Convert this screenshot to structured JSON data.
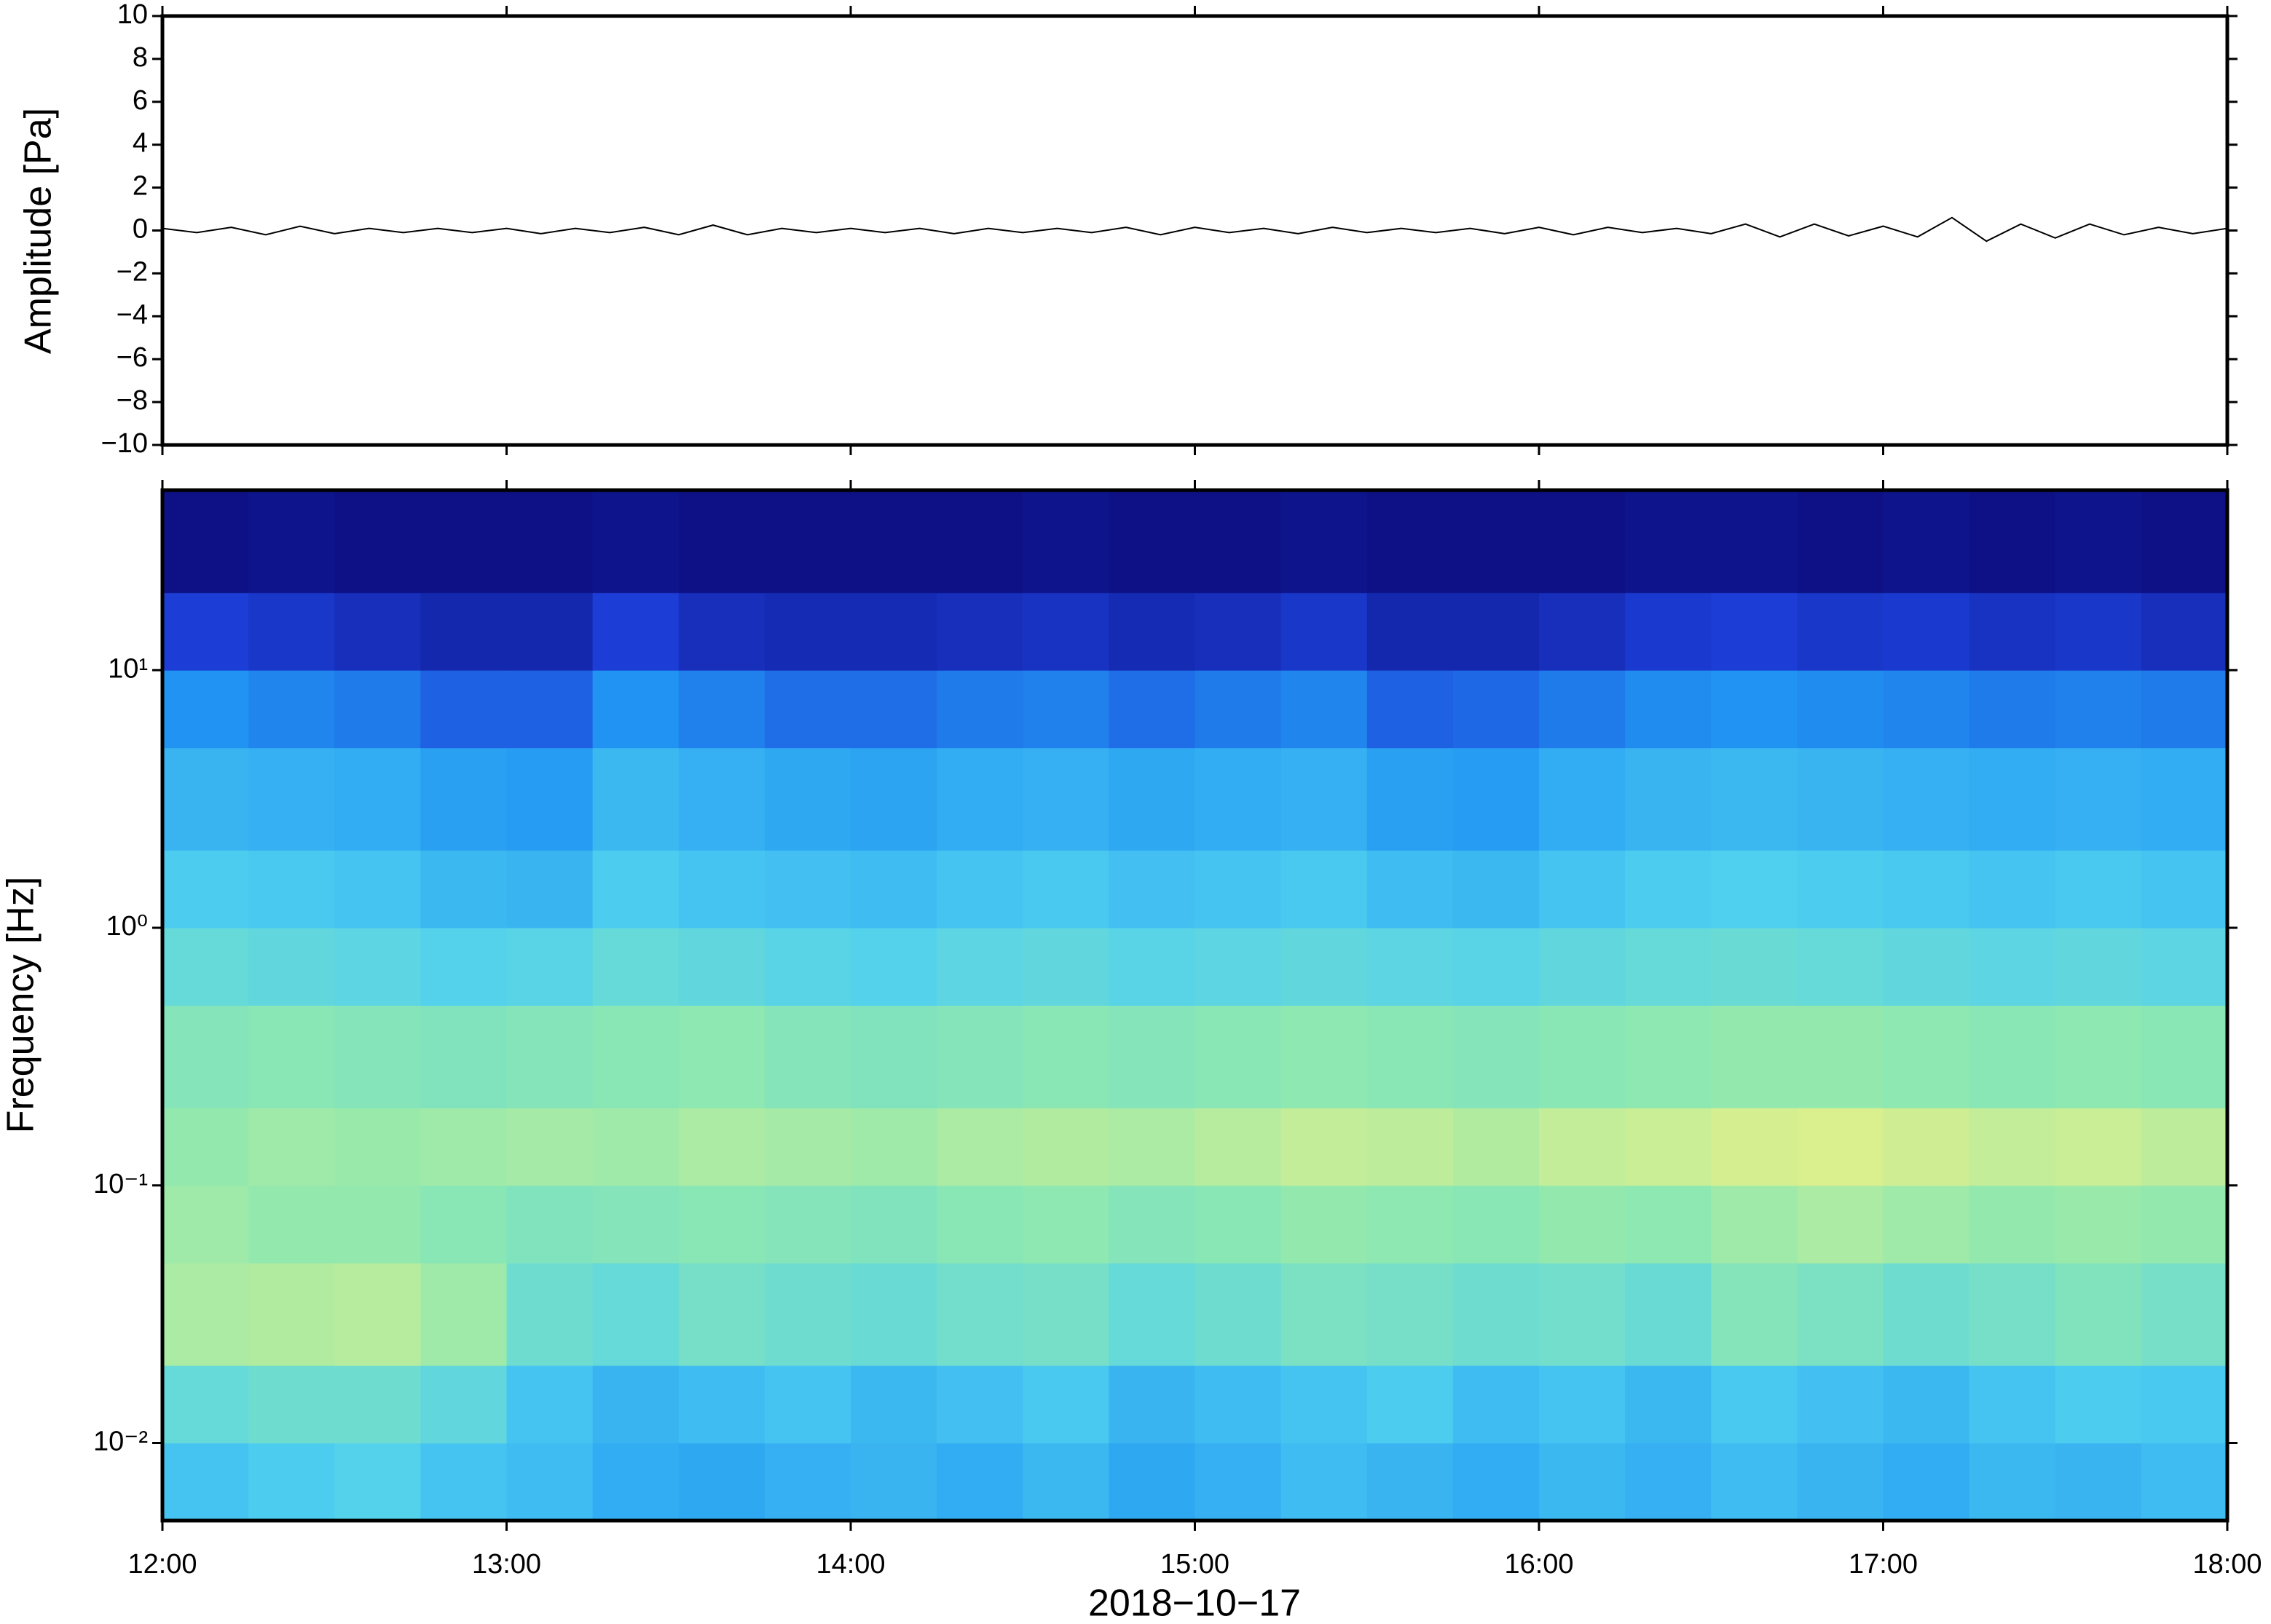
{
  "chart_data": [
    {
      "type": "line",
      "ylabel": "Amplitude [Pa]",
      "color": "#000000",
      "xlim": [
        12,
        18
      ],
      "ylim": [
        -10,
        10
      ],
      "yticks": [
        {
          "value": -10,
          "label": "−10"
        },
        {
          "value": -8,
          "label": "−8"
        },
        {
          "value": -6,
          "label": "−6"
        },
        {
          "value": -4,
          "label": "−4"
        },
        {
          "value": -2,
          "label": "−2"
        },
        0,
        2,
        4,
        6,
        8,
        10
      ],
      "x": [
        12.0,
        12.1,
        12.2,
        12.3,
        12.4,
        12.5,
        12.6,
        12.7,
        12.8,
        12.9,
        13.0,
        13.1,
        13.2,
        13.3,
        13.4,
        13.5,
        13.6,
        13.7,
        13.8,
        13.9,
        14.0,
        14.1,
        14.2,
        14.3,
        14.4,
        14.5,
        14.6,
        14.7,
        14.8,
        14.9,
        15.0,
        15.1,
        15.2,
        15.3,
        15.4,
        15.5,
        15.6,
        15.7,
        15.8,
        15.9,
        16.0,
        16.1,
        16.2,
        16.3,
        16.4,
        16.5,
        16.6,
        16.7,
        16.8,
        16.9,
        17.0,
        17.1,
        17.2,
        17.3,
        17.4,
        17.5,
        17.6,
        17.7,
        17.8,
        17.9,
        18.0
      ],
      "values": [
        0.1,
        -0.1,
        0.15,
        -0.2,
        0.2,
        -0.15,
        0.1,
        -0.1,
        0.1,
        -0.1,
        0.1,
        -0.15,
        0.1,
        -0.1,
        0.15,
        -0.2,
        0.25,
        -0.2,
        0.1,
        -0.1,
        0.1,
        -0.1,
        0.1,
        -0.15,
        0.1,
        -0.1,
        0.1,
        -0.1,
        0.15,
        -0.2,
        0.15,
        -0.1,
        0.1,
        -0.15,
        0.15,
        -0.1,
        0.1,
        -0.1,
        0.1,
        -0.15,
        0.15,
        -0.2,
        0.15,
        -0.1,
        0.1,
        -0.15,
        0.3,
        -0.3,
        0.3,
        -0.25,
        0.2,
        -0.3,
        0.6,
        -0.5,
        0.3,
        -0.35,
        0.3,
        -0.2,
        0.15,
        -0.15,
        0.1
      ]
    },
    {
      "type": "heatmap",
      "ylabel": "Frequency [Hz]",
      "xlabel": "2018−10−17",
      "log_y": true,
      "xlim": [
        12,
        18
      ],
      "ylim": [
        0.005,
        50
      ],
      "xticks": [
        {
          "value": 12,
          "label": "12:00"
        },
        {
          "value": 13,
          "label": "13:00"
        },
        {
          "value": 14,
          "label": "14:00"
        },
        {
          "value": 15,
          "label": "15:00"
        },
        {
          "value": 16,
          "label": "16:00"
        },
        {
          "value": 17,
          "label": "17:00"
        },
        {
          "value": 18,
          "label": "18:00"
        }
      ],
      "yticks": [
        {
          "value": 0.01,
          "label": "10⁻²"
        },
        {
          "value": 0.1,
          "label": "10⁻¹"
        },
        {
          "value": 1,
          "label": "10⁰"
        },
        {
          "value": 10,
          "label": "10¹"
        }
      ],
      "colormap": [
        "#0a0a78",
        "#1c3fd8",
        "#2196f3",
        "#4fd0f0",
        "#8ee8b0",
        "#e3f08a",
        "#f8c060",
        "#e04020"
      ],
      "zlim": [
        0,
        1
      ],
      "x_edges": [
        12,
        12.25,
        12.5,
        12.75,
        13,
        13.25,
        13.5,
        13.75,
        14,
        14.25,
        14.5,
        14.75,
        15,
        15.25,
        15.5,
        15.75,
        16,
        16.25,
        16.5,
        16.75,
        17,
        17.25,
        17.5,
        17.75,
        18
      ],
      "y_edges": [
        0.005,
        0.01,
        0.02,
        0.05,
        0.1,
        0.2,
        0.5,
        1,
        2,
        5,
        10,
        20,
        50
      ],
      "z": [
        [
          0.4,
          0.42,
          0.44,
          0.4,
          0.38,
          0.34,
          0.33,
          0.35,
          0.36,
          0.34,
          0.37,
          0.33,
          0.35,
          0.38,
          0.36,
          0.34,
          0.37,
          0.35,
          0.38,
          0.36,
          0.34,
          0.37,
          0.36,
          0.38
        ],
        [
          0.48,
          0.5,
          0.5,
          0.47,
          0.4,
          0.36,
          0.38,
          0.4,
          0.37,
          0.39,
          0.41,
          0.36,
          0.38,
          0.4,
          0.42,
          0.38,
          0.4,
          0.37,
          0.41,
          0.39,
          0.37,
          0.4,
          0.42,
          0.41
        ],
        [
          0.62,
          0.63,
          0.64,
          0.6,
          0.5,
          0.48,
          0.52,
          0.5,
          0.49,
          0.51,
          0.52,
          0.48,
          0.5,
          0.53,
          0.52,
          0.5,
          0.51,
          0.49,
          0.55,
          0.53,
          0.5,
          0.52,
          0.54,
          0.52
        ],
        [
          0.6,
          0.58,
          0.58,
          0.56,
          0.54,
          0.55,
          0.56,
          0.55,
          0.54,
          0.56,
          0.57,
          0.55,
          0.56,
          0.58,
          0.57,
          0.56,
          0.58,
          0.57,
          0.6,
          0.62,
          0.6,
          0.58,
          0.59,
          0.58
        ],
        [
          0.58,
          0.6,
          0.59,
          0.6,
          0.61,
          0.6,
          0.62,
          0.61,
          0.6,
          0.62,
          0.63,
          0.62,
          0.64,
          0.66,
          0.65,
          0.63,
          0.66,
          0.67,
          0.69,
          0.7,
          0.68,
          0.66,
          0.67,
          0.65
        ],
        [
          0.55,
          0.56,
          0.55,
          0.54,
          0.55,
          0.56,
          0.57,
          0.55,
          0.54,
          0.55,
          0.56,
          0.55,
          0.56,
          0.57,
          0.56,
          0.55,
          0.56,
          0.57,
          0.58,
          0.58,
          0.57,
          0.56,
          0.57,
          0.56
        ],
        [
          0.48,
          0.47,
          0.46,
          0.44,
          0.45,
          0.48,
          0.47,
          0.45,
          0.44,
          0.46,
          0.47,
          0.45,
          0.46,
          0.47,
          0.46,
          0.45,
          0.47,
          0.48,
          0.49,
          0.48,
          0.47,
          0.46,
          0.47,
          0.46
        ],
        [
          0.42,
          0.41,
          0.4,
          0.37,
          0.36,
          0.42,
          0.4,
          0.39,
          0.38,
          0.4,
          0.41,
          0.39,
          0.4,
          0.41,
          0.38,
          0.37,
          0.4,
          0.42,
          0.43,
          0.42,
          0.41,
          0.4,
          0.41,
          0.4
        ],
        [
          0.36,
          0.35,
          0.34,
          0.31,
          0.3,
          0.37,
          0.35,
          0.33,
          0.32,
          0.34,
          0.35,
          0.33,
          0.34,
          0.35,
          0.31,
          0.3,
          0.34,
          0.36,
          0.37,
          0.36,
          0.35,
          0.34,
          0.35,
          0.34
        ],
        [
          0.28,
          0.26,
          0.24,
          0.2,
          0.2,
          0.28,
          0.25,
          0.22,
          0.22,
          0.24,
          0.25,
          0.22,
          0.24,
          0.26,
          0.2,
          0.21,
          0.24,
          0.27,
          0.28,
          0.27,
          0.26,
          0.24,
          0.25,
          0.24
        ],
        [
          0.14,
          0.12,
          0.1,
          0.08,
          0.08,
          0.14,
          0.1,
          0.09,
          0.09,
          0.1,
          0.11,
          0.09,
          0.1,
          0.12,
          0.08,
          0.08,
          0.1,
          0.13,
          0.14,
          0.12,
          0.13,
          0.11,
          0.12,
          0.1
        ],
        [
          0.02,
          0.03,
          0.02,
          0.02,
          0.02,
          0.03,
          0.02,
          0.02,
          0.02,
          0.02,
          0.03,
          0.02,
          0.02,
          0.03,
          0.02,
          0.02,
          0.02,
          0.03,
          0.03,
          0.02,
          0.03,
          0.02,
          0.03,
          0.02
        ]
      ]
    }
  ]
}
